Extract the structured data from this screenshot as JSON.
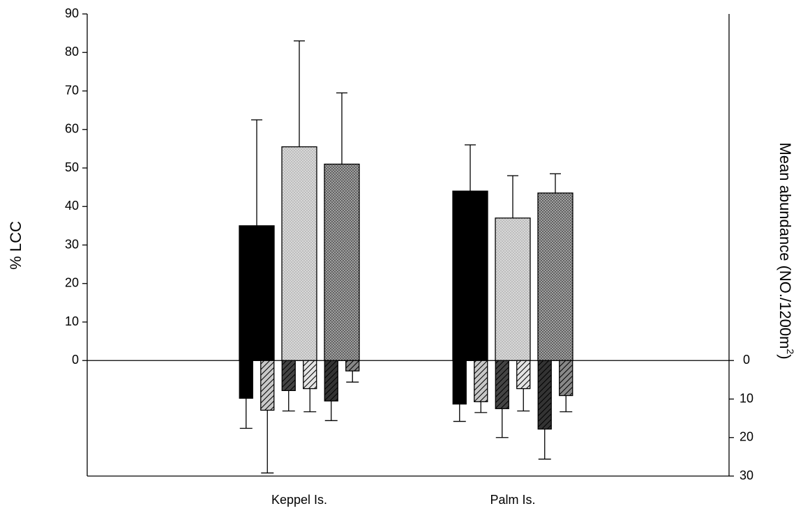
{
  "chart_data": {
    "type": "bar",
    "categories": [
      "Keppel Is.",
      "Palm Is."
    ],
    "ylabel": "% LCC",
    "y2label": "Mean abundance (NO./1200m",
    "y2label_sup": "2",
    "y2label_end": ")",
    "ylim": [
      -30,
      90
    ],
    "yticks": [
      0,
      10,
      20,
      30,
      40,
      50,
      60,
      70,
      80,
      90
    ],
    "y2lim": [
      -90,
      30
    ],
    "y2ticks": [
      0,
      10,
      20,
      30
    ],
    "y2_inverted": true,
    "series": [
      {
        "color": "#000000",
        "pattern": "solid",
        "values": [
          35,
          44
        ],
        "errors": [
          27.5,
          12
        ]
      },
      {
        "color": "#b8b8b8",
        "pattern": "crosshatch",
        "values": [
          55.5,
          37
        ],
        "errors": [
          27.5,
          11
        ]
      },
      {
        "color": "#555555",
        "pattern": "crosshatch",
        "values": [
          51,
          43.5
        ],
        "errors": [
          18.5,
          5
        ]
      },
      {
        "color": "#000000",
        "pattern": "solid",
        "axis": "y2",
        "values": [
          9.8,
          11.3
        ],
        "errors": [
          7.8,
          4.5
        ]
      },
      {
        "color": "#c8c8c8",
        "pattern": "diagonal",
        "axis": "y2",
        "values": [
          12.9,
          10.7
        ],
        "errors": [
          16.3,
          2.8
        ]
      },
      {
        "color": "#444444",
        "pattern": "diagonal",
        "axis": "y2",
        "values": [
          7.8,
          12.5
        ],
        "errors": [
          5.3,
          7.5
        ]
      },
      {
        "color": "#e4e4e4",
        "pattern": "diagonal",
        "axis": "y2",
        "values": [
          7.3,
          7.3
        ],
        "errors": [
          6,
          5.8
        ]
      },
      {
        "color": "#333333",
        "pattern": "diagonal",
        "axis": "y2",
        "values": [
          10.5,
          17.8
        ],
        "errors": [
          5.1,
          7.8
        ]
      },
      {
        "color": "#888888",
        "pattern": "diagonal",
        "axis": "y2",
        "values": [
          2.7,
          9.1
        ],
        "errors": [
          2.9,
          4.2
        ]
      }
    ]
  }
}
